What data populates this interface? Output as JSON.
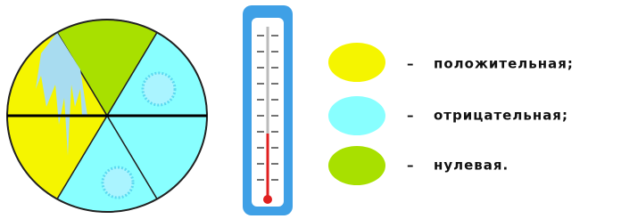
{
  "legend": [
    {
      "dash": "–",
      "label": "положительная;"
    },
    {
      "dash": "–",
      "label": "отрицательная;"
    },
    {
      "dash": "–",
      "label": "нулевая."
    }
  ]
}
